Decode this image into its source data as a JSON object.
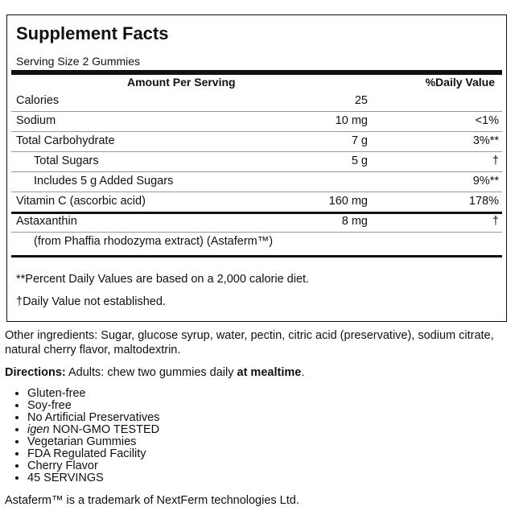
{
  "panel": {
    "title": "Supplement Facts",
    "serving_size": "Serving Size 2 Gummies",
    "header": {
      "amount": "Amount Per Serving",
      "daily_value": "%Daily Value"
    },
    "rows": [
      {
        "name": "Calories",
        "amount": "25"
      },
      {
        "name": "Sodium",
        "amount": "10 mg",
        "daily_value": "<1%"
      },
      {
        "name": "Total Carbohydrate",
        "amount": "7 g",
        "daily_value": "3%**"
      },
      {
        "name": "Total Sugars",
        "amount": "5 g",
        "daily_value": "†"
      },
      {
        "name": "Includes 5 g Added Sugars",
        "daily_value": "9%**"
      },
      {
        "name": "Vitamin C (ascorbic acid)",
        "amount": "160 mg",
        "daily_value": "178%"
      },
      {
        "name": "Astaxanthin",
        "amount": "8 mg",
        "daily_value": "†"
      },
      {
        "name": "(from Phaffia rhodozyma extract) (Astaferm™)"
      }
    ],
    "footnotes": [
      "**Percent Daily Values are based on a 2,000 calorie diet.",
      "†Daily Value not established."
    ]
  },
  "other_ingredients": "Other ingredients: Sugar, glucose syrup, water, pectin, citric acid (preservative), sodium citrate, natural cherry flavor, maltodextrin.",
  "directions": {
    "label": "Directions:",
    "text": "Adults: chew two gummies daily",
    "emphasis": "at mealtime",
    "end": "."
  },
  "features": [
    "Gluten-free",
    "Soy-free",
    "No Artificial Preservatives",
    {
      "brand": "igen",
      "text": "NON-GMO TESTED"
    },
    "Vegetarian Gummies",
    "FDA Regulated Facility",
    "Cherry Flavor",
    "45 SERVINGS"
  ],
  "trademark": "Astaferm™ is a trademark of NextFerm technologies Ltd."
}
